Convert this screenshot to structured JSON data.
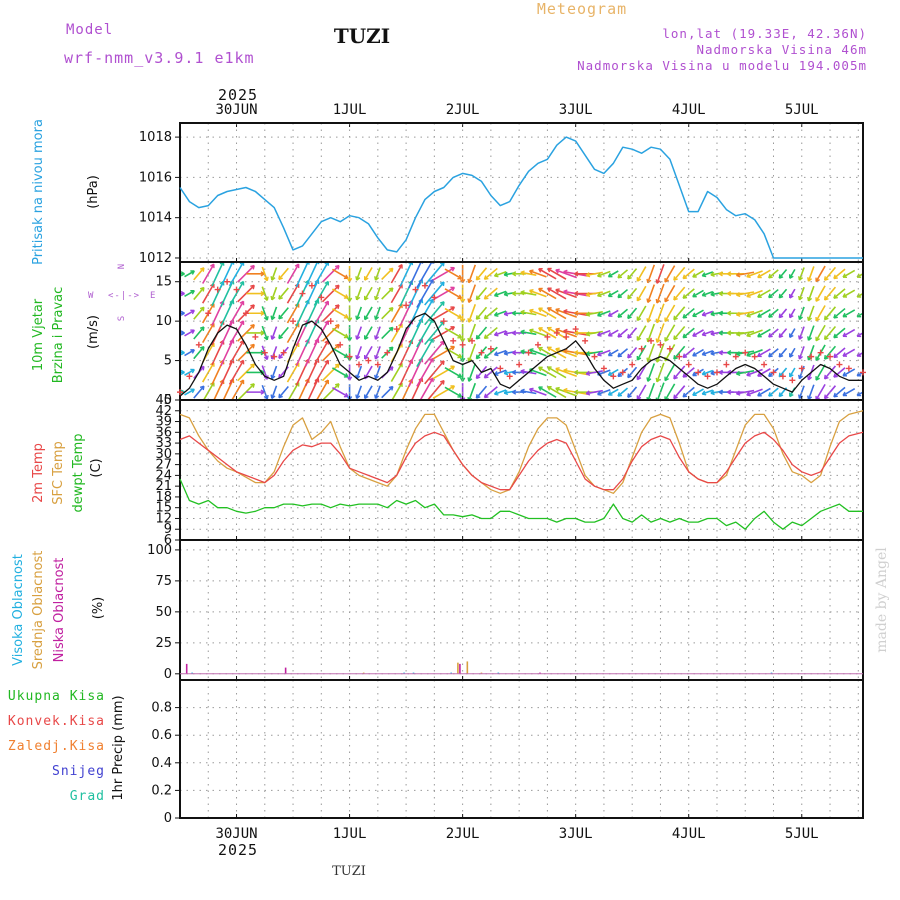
{
  "header": {
    "model_label": "Model",
    "model_name": "wrf-nmm_v3.9.1  e1km",
    "station": "TUZI",
    "meteogram": "Meteogram",
    "lonlat": "lon,lat (19.33E, 42.36N)",
    "altitude": "Nadmorska Visina 46m",
    "model_altitude": "Nadmorska Visina u modelu 194.005m",
    "footer_station": "TUZI",
    "watermark": "made by Angel"
  },
  "colors": {
    "pressure": "#2aa2e0",
    "wind_label": "#22b822",
    "temp2m": "#e84848",
    "sfc": "#d8a040",
    "dew": "#22c022",
    "high_cloud": "#22b0e0",
    "mid_cloud": "#d8a040",
    "low_cloud": "#c020a0",
    "rain_total": "#22b822",
    "rain_conv": "#e84848",
    "freezing": "#f08030",
    "snow": "#4040d0",
    "hail": "#20c0a0",
    "purple_text": "#b050d0",
    "compass": "#b060d0"
  },
  "chart_data": [
    {
      "id": "time_axis",
      "type": "line",
      "top_year": "2025",
      "bottom_year": "2025",
      "day_labels": [
        "30JUN",
        "1JUL",
        "2JUL",
        "3JUL",
        "4JUL",
        "5JUL"
      ],
      "day_hours": [
        0,
        24,
        48,
        72,
        96,
        120
      ],
      "xlim": [
        -12,
        133
      ]
    },
    {
      "id": "pressure",
      "type": "line",
      "ylabel_title": "Pritisak na nivou mora",
      "ylabel_unit": "(hPa)",
      "ylim": [
        1011.8,
        1018.7
      ],
      "yticks": [
        1012,
        1014,
        1016,
        1018
      ],
      "grid": true,
      "x": [
        -12,
        -10,
        -8,
        -6,
        -4,
        -2,
        0,
        2,
        4,
        6,
        8,
        10,
        12,
        14,
        16,
        18,
        20,
        22,
        24,
        26,
        28,
        30,
        32,
        34,
        36,
        38,
        40,
        42,
        44,
        46,
        48,
        50,
        52,
        54,
        56,
        58,
        60,
        62,
        64,
        66,
        68,
        70,
        72,
        74,
        76,
        78,
        80,
        82,
        84,
        86,
        88,
        90,
        92,
        94,
        96,
        98,
        100,
        102,
        104,
        106,
        108,
        110,
        112,
        114,
        116,
        118,
        120,
        122,
        124,
        126,
        128,
        130,
        133
      ],
      "values": [
        1015.5,
        1014.8,
        1014.5,
        1014.6,
        1015.1,
        1015.3,
        1015.4,
        1015.5,
        1015.3,
        1014.9,
        1014.5,
        1013.5,
        1012.4,
        1012.6,
        1013.2,
        1013.8,
        1014.0,
        1013.8,
        1014.1,
        1014.0,
        1013.7,
        1013.0,
        1012.4,
        1012.3,
        1012.9,
        1014.0,
        1014.9,
        1015.3,
        1015.5,
        1016.0,
        1016.2,
        1016.1,
        1015.8,
        1015.1,
        1014.6,
        1014.8,
        1015.6,
        1016.3,
        1016.7,
        1016.9,
        1017.6,
        1018.0,
        1017.8,
        1017.1,
        1016.4,
        1016.2,
        1016.7,
        1017.5,
        1017.4,
        1017.2,
        1017.5,
        1017.4,
        1016.9,
        1015.6,
        1014.3,
        1014.3,
        1015.3,
        1015.0,
        1014.4,
        1014.1,
        1014.2,
        1013.9,
        1013.2,
        1012.0,
        1012.0,
        1012.0,
        1012.0,
        1012.0,
        1012.0,
        1012.0,
        1012.0,
        1012.0,
        1012.0
      ]
    },
    {
      "id": "wind",
      "type": "line",
      "ylabel_title": "10m Vjetar",
      "ylabel_title2": "Brzina i Pravac",
      "ylabel_unit": "(m/s)",
      "compass_top": "N",
      "compass_left": "W",
      "compass_right": "E",
      "compass_mid": "<-|->",
      "compass_bottom": "S",
      "ylim": [
        0,
        17.5
      ],
      "yticks": [
        0,
        5,
        10,
        15
      ],
      "grid": true,
      "x": [
        -12,
        -10,
        -8,
        -6,
        -4,
        -2,
        0,
        2,
        4,
        6,
        8,
        10,
        12,
        14,
        16,
        18,
        20,
        22,
        24,
        26,
        28,
        30,
        32,
        34,
        36,
        38,
        40,
        42,
        44,
        46,
        48,
        50,
        52,
        54,
        56,
        58,
        60,
        62,
        64,
        66,
        68,
        70,
        72,
        74,
        76,
        78,
        80,
        82,
        84,
        86,
        88,
        90,
        92,
        94,
        96,
        98,
        100,
        102,
        104,
        106,
        108,
        110,
        112,
        114,
        116,
        118,
        120,
        122,
        124,
        126,
        128,
        130,
        133
      ],
      "speed": [
        0.5,
        1.5,
        3.5,
        6.5,
        8.5,
        9.5,
        9.0,
        7.0,
        4.5,
        3.0,
        2.5,
        3.0,
        6.5,
        9.5,
        10.0,
        9.0,
        7.0,
        4.5,
        3.5,
        2.5,
        3.0,
        2.5,
        3.5,
        6.0,
        9.0,
        10.5,
        11.0,
        10.0,
        7.5,
        5.0,
        4.5,
        5.0,
        3.5,
        4.0,
        2.0,
        1.5,
        2.5,
        3.5,
        4.5,
        5.5,
        6.0,
        6.5,
        7.5,
        6.0,
        4.0,
        2.5,
        1.5,
        2.0,
        2.5,
        4.0,
        5.0,
        5.5,
        5.0,
        4.0,
        3.0,
        2.0,
        1.5,
        2.0,
        3.0,
        4.0,
        4.5,
        4.0,
        3.0,
        2.0,
        1.5,
        1.0,
        2.5,
        3.5,
        4.5,
        4.0,
        3.0,
        2.5,
        2.5
      ],
      "gusts": [
        1.0,
        3.0,
        7.0,
        11.0,
        14.0,
        15.0,
        14.0,
        11.0,
        8.0,
        6.0,
        5.5,
        6.0,
        10.0,
        13.5,
        14.5,
        13.0,
        10.0,
        7.0,
        5.5,
        4.5,
        5.0,
        4.5,
        6.0,
        9.0,
        12.0,
        14.0,
        14.5,
        13.0,
        10.0,
        7.5,
        7.0,
        7.5,
        6.0,
        6.5,
        4.0,
        3.0,
        4.5,
        6.0,
        7.0,
        8.0,
        8.5,
        8.0,
        9.0,
        7.5,
        5.5,
        4.0,
        3.0,
        3.5,
        4.5,
        6.5,
        7.5,
        7.0,
        6.5,
        5.5,
        4.5,
        3.5,
        3.0,
        3.5,
        4.5,
        5.5,
        6.0,
        5.5,
        4.5,
        3.5,
        3.0,
        2.5,
        4.0,
        5.5,
        6.0,
        5.5,
        4.5,
        4.0,
        3.5
      ],
      "direction_deg": [
        90,
        60,
        40,
        30,
        25,
        25,
        30,
        45,
        90,
        160,
        200,
        220,
        30,
        25,
        25,
        30,
        45,
        120,
        180,
        200,
        210,
        200,
        45,
        30,
        25,
        25,
        30,
        40,
        60,
        120,
        180,
        200,
        220,
        230,
        250,
        260,
        270,
        280,
        290,
        300,
        300,
        290,
        280,
        270,
        260,
        250,
        240,
        230,
        220,
        210,
        200,
        200,
        210,
        220,
        230,
        240,
        250,
        260,
        270,
        270,
        260,
        250,
        240,
        230,
        220,
        210,
        200,
        200,
        210,
        220,
        230,
        240,
        240
      ]
    },
    {
      "id": "temperature",
      "type": "line",
      "ylabel_title": "2m Temp",
      "ylabel_title2": "SFC Temp",
      "ylabel_title3": "dewpt Temp",
      "ylabel_unit": "(C)",
      "ylim": [
        6,
        45
      ],
      "yticks": [
        6,
        9,
        12,
        15,
        18,
        21,
        24,
        27,
        30,
        33,
        36,
        39,
        42,
        45
      ],
      "grid": true,
      "x": [
        -12,
        -10,
        -8,
        -6,
        -4,
        -2,
        0,
        2,
        4,
        6,
        8,
        10,
        12,
        14,
        16,
        18,
        20,
        22,
        24,
        26,
        28,
        30,
        32,
        34,
        36,
        38,
        40,
        42,
        44,
        46,
        48,
        50,
        52,
        54,
        56,
        58,
        60,
        62,
        64,
        66,
        68,
        70,
        72,
        74,
        76,
        78,
        80,
        82,
        84,
        86,
        88,
        90,
        92,
        94,
        96,
        98,
        100,
        102,
        104,
        106,
        108,
        110,
        112,
        114,
        116,
        118,
        120,
        122,
        124,
        126,
        128,
        130,
        133
      ],
      "t2m": [
        34,
        35,
        33,
        31,
        29,
        27,
        25,
        24,
        23,
        22,
        24,
        28,
        31,
        32.5,
        32,
        33,
        33,
        30,
        26,
        25,
        24,
        23,
        22,
        24,
        29,
        33,
        35,
        36,
        35,
        31,
        27,
        24,
        22,
        21,
        20,
        20,
        24,
        28,
        31,
        33,
        34,
        33,
        28,
        23,
        21,
        20,
        20,
        23,
        28,
        32,
        34,
        35,
        34,
        29,
        25,
        23,
        22,
        22,
        25,
        29,
        33,
        35,
        36,
        34,
        31,
        27,
        25,
        24,
        25,
        29,
        33,
        35,
        36
      ],
      "sfc": [
        41,
        40,
        35,
        31,
        28,
        26,
        25,
        23.5,
        22,
        22,
        25,
        32,
        38,
        40,
        34,
        36,
        39,
        32,
        26,
        24,
        23,
        22,
        21,
        24,
        31,
        37,
        41,
        41,
        36,
        31,
        27,
        24,
        22,
        20,
        19,
        20,
        25,
        32,
        37,
        40,
        40,
        38,
        31,
        24,
        21,
        20,
        19,
        22,
        29,
        36,
        40,
        41,
        40,
        33,
        25,
        23,
        22,
        22,
        24,
        31,
        38,
        41,
        41,
        37,
        30,
        25,
        24,
        22,
        24,
        32,
        39,
        41,
        42
      ],
      "dewpt": [
        23,
        17,
        16,
        17,
        15,
        15,
        14,
        13.5,
        14,
        15,
        15,
        16,
        16,
        15.5,
        16,
        16,
        15,
        16,
        15.5,
        16,
        16,
        16,
        15,
        17,
        16,
        17,
        15,
        16,
        13,
        13,
        12.5,
        13,
        12,
        12,
        14,
        14,
        13,
        12,
        12,
        12,
        11,
        12,
        12,
        11,
        11,
        12,
        16,
        12,
        11,
        13,
        11,
        12,
        11,
        12,
        11,
        11,
        12,
        12,
        10,
        11,
        9,
        12,
        14,
        11,
        9,
        11,
        10,
        12,
        14,
        15,
        16,
        14,
        14
      ]
    },
    {
      "id": "cloud_cover",
      "type": "bar",
      "ylabel_title": "Visoka Oblacnost",
      "ylabel_title2": "Srednja Oblacnost",
      "ylabel_title3": "Niska Oblacnost",
      "ylabel_unit": "(%)",
      "ylim": [
        -5,
        108
      ],
      "yticks": [
        0,
        25,
        50,
        75,
        100
      ],
      "grid": true,
      "series": [
        {
          "name": "Visoka Oblacnost",
          "x": [
            -9,
            36,
            38,
            46,
            56,
            114
          ],
          "values": [
            1,
            1,
            1,
            1,
            1,
            1
          ]
        },
        {
          "name": "Srednja Oblacnost",
          "x": [
            27,
            47,
            49,
            52
          ],
          "values": [
            1,
            9,
            10,
            1
          ]
        },
        {
          "name": "Niska Oblacnost",
          "x": [
            -11,
            10,
            47,
            64
          ],
          "values": [
            8,
            5,
            8,
            1
          ]
        }
      ]
    },
    {
      "id": "precip",
      "type": "bar",
      "ylabel_title": "Ukupna  Kisa",
      "ylabel_title2": "Konvek.Kisa",
      "ylabel_title3": "Zaledj.Kisa",
      "ylabel_title4": "Snijeg",
      "ylabel_title5": "Grad",
      "ylabel_unit": "1hr Precip (mm)",
      "ylim": [
        0,
        1.0
      ],
      "yticks": [
        0,
        0.2,
        0.4,
        0.6,
        0.8
      ],
      "grid": true,
      "values": []
    }
  ]
}
